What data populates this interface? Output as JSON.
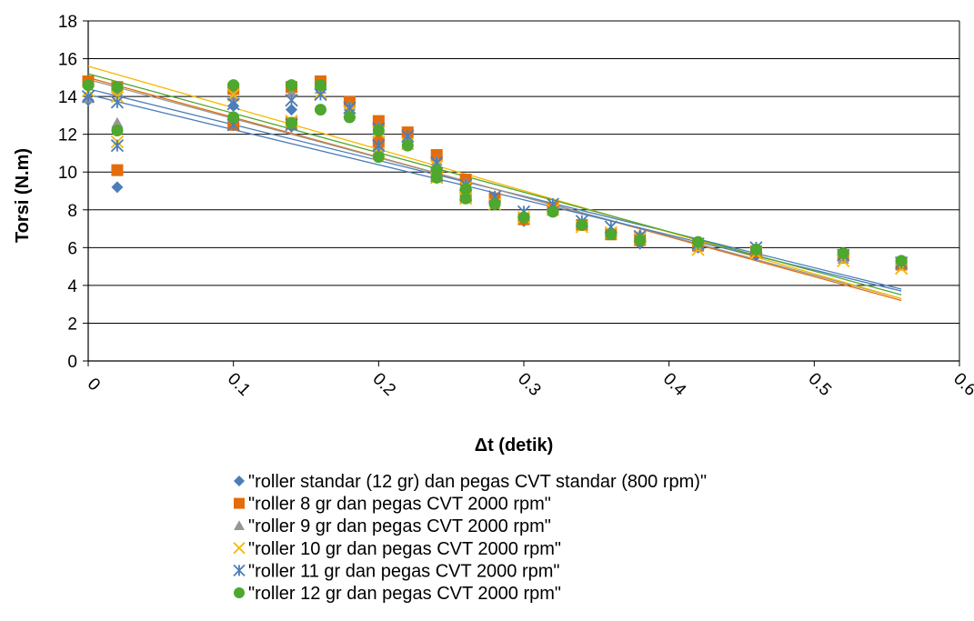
{
  "chart_data": {
    "type": "scatter",
    "xlabel": "Δt (detik)",
    "ylabel": "Torsi (N.m)",
    "xlim": [
      0,
      0.6
    ],
    "ylim": [
      0,
      18
    ],
    "x_ticks": [
      "0",
      "0.1",
      "0.2",
      "0.3",
      "0.4",
      "0.5",
      "0.6"
    ],
    "y_ticks": [
      "0",
      "2",
      "4",
      "6",
      "8",
      "10",
      "12",
      "14",
      "16",
      "18"
    ],
    "grid": "horizontal",
    "legend_position": "bottom",
    "series": [
      {
        "name": "\"roller standar (12 gr) dan pegas CVT standar (800 rpm)\"",
        "marker": "diamond",
        "color": "#4a7ebb",
        "points": [
          [
            0,
            13.8
          ],
          [
            0.02,
            9.2
          ],
          [
            0.02,
            14.4
          ],
          [
            0.1,
            12.7
          ],
          [
            0.1,
            13.5
          ],
          [
            0.14,
            13.3
          ],
          [
            0.14,
            12.4
          ],
          [
            0.16,
            14.5
          ],
          [
            0.18,
            13.3
          ],
          [
            0.2,
            11.2
          ],
          [
            0.2,
            12.4
          ],
          [
            0.22,
            11.6
          ],
          [
            0.24,
            10.2
          ],
          [
            0.24,
            9.8
          ],
          [
            0.26,
            9.3
          ],
          [
            0.26,
            8.8
          ],
          [
            0.28,
            8.4
          ],
          [
            0.3,
            7.4
          ],
          [
            0.32,
            8.0
          ],
          [
            0.34,
            7.2
          ],
          [
            0.36,
            6.8
          ],
          [
            0.38,
            6.2
          ],
          [
            0.42,
            6.0
          ],
          [
            0.46,
            5.6
          ],
          [
            0.52,
            5.5
          ],
          [
            0.56,
            5.2
          ]
        ],
        "trend": [
          [
            0,
            14.4
          ],
          [
            0.56,
            3.8
          ]
        ]
      },
      {
        "name": "\"roller 8 gr dan pegas CVT 2000 rpm\"",
        "marker": "square",
        "color": "#e46c0a",
        "points": [
          [
            0,
            14.8
          ],
          [
            0.02,
            10.1
          ],
          [
            0.02,
            14.5
          ],
          [
            0.1,
            12.5
          ],
          [
            0.1,
            14.4
          ],
          [
            0.14,
            12.6
          ],
          [
            0.14,
            14.5
          ],
          [
            0.16,
            14.8
          ],
          [
            0.18,
            13.7
          ],
          [
            0.2,
            12.7
          ],
          [
            0.2,
            11.6
          ],
          [
            0.22,
            12.1
          ],
          [
            0.24,
            10.9
          ],
          [
            0.24,
            9.9
          ],
          [
            0.26,
            9.6
          ],
          [
            0.26,
            8.7
          ],
          [
            0.28,
            8.6
          ],
          [
            0.3,
            7.5
          ],
          [
            0.32,
            8.1
          ],
          [
            0.34,
            7.2
          ],
          [
            0.36,
            6.7
          ],
          [
            0.38,
            6.4
          ],
          [
            0.42,
            6.1
          ],
          [
            0.46,
            5.8
          ],
          [
            0.52,
            5.6
          ],
          [
            0.56,
            5.1
          ]
        ],
        "trend": [
          [
            0,
            15.0
          ],
          [
            0.56,
            3.2
          ]
        ]
      },
      {
        "name": "\"roller 9 gr dan pegas CVT 2000 rpm\"",
        "marker": "triangle",
        "color": "#969696",
        "points": [
          [
            0,
            13.9
          ],
          [
            0.02,
            12.6
          ],
          [
            0.02,
            14.3
          ],
          [
            0.1,
            12.9
          ],
          [
            0.1,
            14.0
          ],
          [
            0.14,
            12.6
          ],
          [
            0.14,
            14.2
          ],
          [
            0.16,
            14.4
          ],
          [
            0.18,
            13.5
          ],
          [
            0.2,
            12.4
          ],
          [
            0.2,
            11.2
          ],
          [
            0.22,
            11.8
          ],
          [
            0.24,
            10.6
          ],
          [
            0.24,
            9.9
          ],
          [
            0.26,
            9.4
          ],
          [
            0.26,
            8.7
          ],
          [
            0.28,
            8.6
          ],
          [
            0.3,
            7.7
          ],
          [
            0.32,
            8.2
          ],
          [
            0.34,
            7.3
          ],
          [
            0.36,
            6.8
          ],
          [
            0.38,
            6.7
          ],
          [
            0.42,
            6.1
          ],
          [
            0.46,
            5.9
          ],
          [
            0.52,
            5.4
          ],
          [
            0.56,
            5.3
          ]
        ],
        "trend": [
          [
            0,
            14.9
          ],
          [
            0.56,
            3.3
          ]
        ]
      },
      {
        "name": "\"roller 10 gr dan pegas CVT 2000 rpm\"",
        "marker": "x",
        "color": "#f5b800",
        "points": [
          [
            0,
            14.3
          ],
          [
            0.02,
            11.6
          ],
          [
            0.02,
            14.0
          ],
          [
            0.1,
            12.5
          ],
          [
            0.1,
            14.1
          ],
          [
            0.14,
            12.7
          ],
          [
            0.14,
            13.8
          ],
          [
            0.16,
            14.2
          ],
          [
            0.18,
            13.2
          ],
          [
            0.2,
            12.1
          ],
          [
            0.2,
            11.0
          ],
          [
            0.22,
            11.5
          ],
          [
            0.24,
            10.3
          ],
          [
            0.24,
            9.7
          ],
          [
            0.26,
            9.2
          ],
          [
            0.26,
            8.6
          ],
          [
            0.28,
            8.3
          ],
          [
            0.3,
            7.6
          ],
          [
            0.32,
            8.0
          ],
          [
            0.34,
            7.1
          ],
          [
            0.36,
            6.8
          ],
          [
            0.38,
            6.5
          ],
          [
            0.42,
            5.9
          ],
          [
            0.46,
            5.7
          ],
          [
            0.52,
            5.3
          ],
          [
            0.56,
            4.9
          ]
        ],
        "trend": [
          [
            0,
            15.6
          ],
          [
            0.56,
            3.3
          ]
        ]
      },
      {
        "name": "\"roller 11 gr dan pegas CVT 2000 rpm\"",
        "marker": "star",
        "color": "#4a7ebb",
        "points": [
          [
            0,
            14.0
          ],
          [
            0.02,
            11.4
          ],
          [
            0.02,
            13.7
          ],
          [
            0.1,
            12.5
          ],
          [
            0.1,
            13.6
          ],
          [
            0.14,
            12.5
          ],
          [
            0.14,
            13.8
          ],
          [
            0.16,
            14.1
          ],
          [
            0.18,
            13.4
          ],
          [
            0.2,
            12.3
          ],
          [
            0.2,
            11.4
          ],
          [
            0.22,
            11.9
          ],
          [
            0.24,
            10.5
          ],
          [
            0.24,
            9.8
          ],
          [
            0.26,
            9.3
          ],
          [
            0.26,
            8.8
          ],
          [
            0.28,
            8.7
          ],
          [
            0.3,
            7.9
          ],
          [
            0.32,
            8.3
          ],
          [
            0.34,
            7.4
          ],
          [
            0.36,
            7.1
          ],
          [
            0.38,
            6.6
          ],
          [
            0.42,
            6.2
          ],
          [
            0.46,
            6.0
          ],
          [
            0.52,
            5.6
          ],
          [
            0.56,
            5.2
          ]
        ],
        "trend": [
          [
            0,
            14.1
          ],
          [
            0.56,
            3.7
          ]
        ]
      },
      {
        "name": "\"roller 12 gr dan pegas CVT 2000 rpm\"",
        "marker": "circle",
        "color": "#4ea72e",
        "points": [
          [
            0,
            14.6
          ],
          [
            0.02,
            12.2
          ],
          [
            0.02,
            14.5
          ],
          [
            0.1,
            12.9
          ],
          [
            0.1,
            14.6
          ],
          [
            0.14,
            12.6
          ],
          [
            0.14,
            14.6
          ],
          [
            0.16,
            13.3
          ],
          [
            0.16,
            14.6
          ],
          [
            0.18,
            12.9
          ],
          [
            0.2,
            10.8
          ],
          [
            0.2,
            12.2
          ],
          [
            0.22,
            11.4
          ],
          [
            0.24,
            9.7
          ],
          [
            0.24,
            10.1
          ],
          [
            0.26,
            8.6
          ],
          [
            0.26,
            9.1
          ],
          [
            0.28,
            8.3
          ],
          [
            0.3,
            7.6
          ],
          [
            0.32,
            7.9
          ],
          [
            0.34,
            7.2
          ],
          [
            0.36,
            6.7
          ],
          [
            0.38,
            6.4
          ],
          [
            0.42,
            6.3
          ],
          [
            0.46,
            5.9
          ],
          [
            0.52,
            5.7
          ],
          [
            0.56,
            5.3
          ]
        ],
        "trend": [
          [
            0,
            15.2
          ],
          [
            0.56,
            3.5
          ]
        ]
      }
    ]
  }
}
